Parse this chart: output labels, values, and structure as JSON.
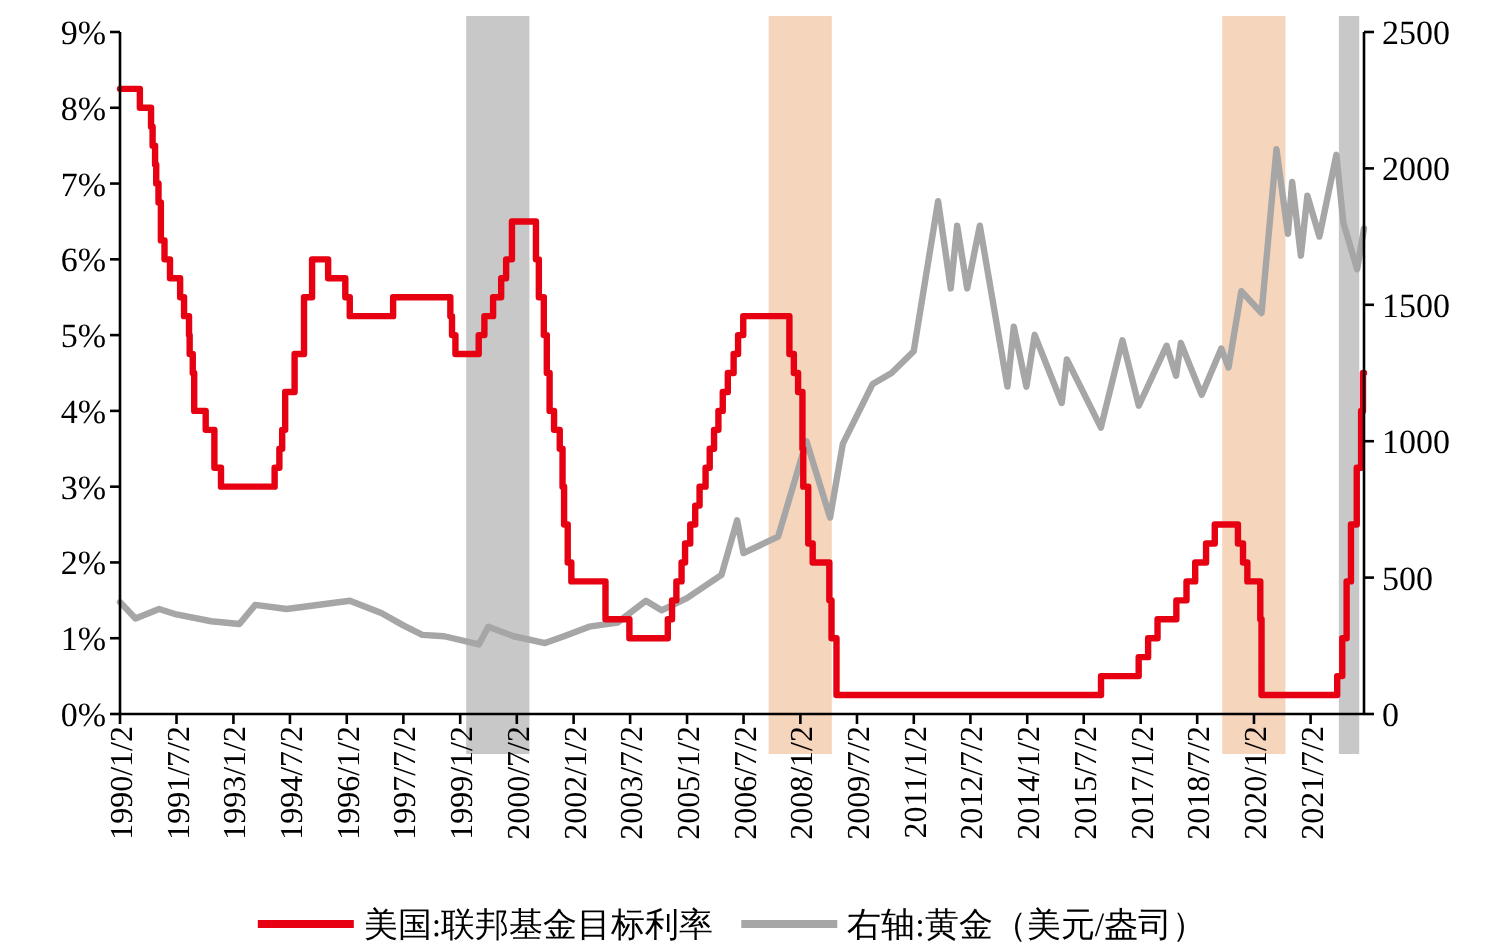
{
  "chart_data": {
    "type": "line",
    "xlim": [
      "1990-01-02",
      "2022-11-30"
    ],
    "xticks": [
      {
        "value": "1990-01-02",
        "label": "1990/1/2"
      },
      {
        "value": "1991-07-02",
        "label": "1991/7/2"
      },
      {
        "value": "1993-01-02",
        "label": "1993/1/2"
      },
      {
        "value": "1994-07-02",
        "label": "1994/7/2"
      },
      {
        "value": "1996-01-02",
        "label": "1996/1/2"
      },
      {
        "value": "1997-07-02",
        "label": "1997/7/2"
      },
      {
        "value": "1999-01-02",
        "label": "1999/1/2"
      },
      {
        "value": "2000-07-02",
        "label": "2000/7/2"
      },
      {
        "value": "2002-01-02",
        "label": "2002/1/2"
      },
      {
        "value": "2003-07-02",
        "label": "2003/7/2"
      },
      {
        "value": "2005-01-02",
        "label": "2005/1/2"
      },
      {
        "value": "2006-07-02",
        "label": "2006/7/2"
      },
      {
        "value": "2008-01-02",
        "label": "2008/1/2"
      },
      {
        "value": "2009-07-02",
        "label": "2009/7/2"
      },
      {
        "value": "2011-01-02",
        "label": "2011/1/2"
      },
      {
        "value": "2012-07-02",
        "label": "2012/7/2"
      },
      {
        "value": "2014-01-02",
        "label": "2014/1/2"
      },
      {
        "value": "2015-07-02",
        "label": "2015/7/2"
      },
      {
        "value": "2017-01-02",
        "label": "2017/1/2"
      },
      {
        "value": "2018-07-02",
        "label": "2018/7/2"
      },
      {
        "value": "2020-01-02",
        "label": "2020/1/2"
      },
      {
        "value": "2021-07-02",
        "label": "2021/7/2"
      }
    ],
    "ylim": [
      0,
      9
    ],
    "yticks": [
      {
        "value": 0,
        "label": "0%"
      },
      {
        "value": 1,
        "label": "1%"
      },
      {
        "value": 2,
        "label": "2%"
      },
      {
        "value": 3,
        "label": "3%"
      },
      {
        "value": 4,
        "label": "4%"
      },
      {
        "value": 5,
        "label": "5%"
      },
      {
        "value": 6,
        "label": "6%"
      },
      {
        "value": 7,
        "label": "7%"
      },
      {
        "value": 8,
        "label": "8%"
      },
      {
        "value": 9,
        "label": "9%"
      }
    ],
    "y2lim": [
      0,
      2500
    ],
    "y2ticks": [
      0,
      500,
      1000,
      1500,
      2000,
      2500
    ],
    "grid": false,
    "legend": "bottom",
    "marker": "none",
    "line_style": "solid",
    "bands": [
      {
        "axis": "x",
        "from": "1999-03-01",
        "to": "2000-11-01",
        "color": "#c8c8c8"
      },
      {
        "axis": "x",
        "from": "2007-03-01",
        "to": "2008-11-01",
        "color": "#f6d5bd"
      },
      {
        "axis": "x",
        "from": "2019-03-01",
        "to": "2020-11-01",
        "color": "#f6d5bd"
      },
      {
        "axis": "x",
        "from": "2022-04-01",
        "to": "2022-10-15",
        "color": "#c8c8c8"
      }
    ],
    "series": [
      {
        "name": "右轴:黄金（美元/盎司）",
        "color": "#a6a6a6",
        "axis": "y2",
        "x": [
          "1990-01-02",
          "1990-06-01",
          "1991-01-15",
          "1991-07-01",
          "1992-06-01",
          "1993-03-01",
          "1993-08-01",
          "1994-06-01",
          "1996-02-01",
          "1996-12-01",
          "1997-07-01",
          "1998-01-01",
          "1998-08-01",
          "1999-07-01",
          "1999-10-01",
          "2000-06-01",
          "2001-04-01",
          "2001-10-01",
          "2002-06-01",
          "2003-03-01",
          "2003-12-01",
          "2004-05-01",
          "2005-01-01",
          "2005-12-01",
          "2006-05-01",
          "2006-07-01",
          "2007-06-01",
          "2008-03-01",
          "2008-10-15",
          "2009-02-15",
          "2009-12-01",
          "2010-06-01",
          "2011-01-01",
          "2011-08-25",
          "2011-12-25",
          "2012-02-25",
          "2012-06-01",
          "2012-10-01",
          "2013-06-25",
          "2013-08-25",
          "2013-12-25",
          "2014-03-15",
          "2014-12-01",
          "2015-01-20",
          "2015-12-15",
          "2016-07-10",
          "2016-12-15",
          "2017-09-10",
          "2017-12-10",
          "2018-01-25",
          "2018-08-15",
          "2019-02-20",
          "2019-05-01",
          "2019-09-01",
          "2020-03-15",
          "2020-08-06",
          "2020-11-25",
          "2021-01-05",
          "2021-03-30",
          "2021-06-01",
          "2021-09-25",
          "2022-03-08",
          "2022-05-15",
          "2022-09-25",
          "2022-11-30"
        ],
        "values": [
          410,
          350,
          385,
          365,
          340,
          330,
          400,
          385,
          415,
          370,
          325,
          290,
          285,
          255,
          320,
          285,
          260,
          285,
          320,
          335,
          415,
          380,
          425,
          510,
          710,
          590,
          650,
          1000,
          720,
          990,
          1210,
          1250,
          1330,
          1880,
          1560,
          1790,
          1560,
          1790,
          1200,
          1420,
          1200,
          1390,
          1140,
          1300,
          1050,
          1370,
          1130,
          1350,
          1240,
          1360,
          1170,
          1340,
          1270,
          1550,
          1470,
          2070,
          1760,
          1950,
          1680,
          1900,
          1750,
          2050,
          1800,
          1630,
          1780
        ]
      },
      {
        "name": "美国:联邦基金目标利率",
        "color": "#e60012",
        "type": "step",
        "x": [
          "1990-01-02",
          "1990-07-13",
          "1990-10-29",
          "1990-11-13",
          "1990-12-07",
          "1990-12-18",
          "1991-01-09",
          "1991-02-01",
          "1991-03-08",
          "1991-04-30",
          "1991-08-06",
          "1991-09-13",
          "1991-10-31",
          "1991-11-06",
          "1991-12-06",
          "1991-12-20",
          "1992-04-09",
          "1992-07-02",
          "1992-09-04",
          "1994-02-04",
          "1994-03-22",
          "1994-04-18",
          "1994-05-17",
          "1994-08-16",
          "1994-11-15",
          "1995-02-01",
          "1995-07-06",
          "1995-12-19",
          "1996-01-31",
          "1997-03-25",
          "1998-09-29",
          "1998-10-15",
          "1998-11-17",
          "1999-06-30",
          "1999-08-24",
          "1999-11-16",
          "2000-02-02",
          "2000-03-21",
          "2000-05-16",
          "2001-01-03",
          "2001-01-31",
          "2001-03-20",
          "2001-04-18",
          "2001-05-15",
          "2001-06-27",
          "2001-08-21",
          "2001-09-17",
          "2001-10-02",
          "2001-11-06",
          "2001-12-11",
          "2002-11-06",
          "2003-06-25",
          "2004-06-30",
          "2004-08-10",
          "2004-09-21",
          "2004-11-10",
          "2004-12-14",
          "2005-02-02",
          "2005-03-22",
          "2005-05-03",
          "2005-06-30",
          "2005-08-09",
          "2005-09-20",
          "2005-11-01",
          "2005-12-13",
          "2006-01-31",
          "2006-03-28",
          "2006-05-10",
          "2006-06-29",
          "2007-09-18",
          "2007-10-31",
          "2007-12-11",
          "2008-01-22",
          "2008-01-30",
          "2008-03-18",
          "2008-04-30",
          "2008-10-08",
          "2008-10-29",
          "2008-12-16",
          "2015-12-16",
          "2016-12-14",
          "2017-03-15",
          "2017-06-14",
          "2017-12-13",
          "2018-03-21",
          "2018-06-13",
          "2018-09-26",
          "2018-12-19",
          "2019-07-31",
          "2019-09-18",
          "2019-10-30",
          "2020-03-03",
          "2020-03-15",
          "2022-03-16",
          "2022-05-04",
          "2022-06-15",
          "2022-07-27",
          "2022-09-21",
          "2022-11-02",
          "2022-11-20",
          "2022-11-30"
        ],
        "values": [
          8.25,
          8.0,
          7.75,
          7.5,
          7.25,
          7.0,
          6.75,
          6.25,
          6.0,
          5.75,
          5.5,
          5.25,
          5.0,
          4.75,
          4.5,
          4.0,
          3.75,
          3.25,
          3.0,
          3.25,
          3.5,
          3.75,
          4.25,
          4.75,
          5.5,
          6.0,
          5.75,
          5.5,
          5.25,
          5.5,
          5.25,
          5.0,
          4.75,
          5.0,
          5.25,
          5.5,
          5.75,
          6.0,
          6.5,
          6.0,
          5.5,
          5.0,
          4.5,
          4.0,
          3.75,
          3.5,
          3.0,
          2.5,
          2.0,
          1.75,
          1.25,
          1.0,
          1.25,
          1.5,
          1.75,
          2.0,
          2.25,
          2.5,
          2.75,
          3.0,
          3.25,
          3.5,
          3.75,
          4.0,
          4.25,
          4.5,
          4.75,
          5.0,
          5.25,
          4.75,
          4.5,
          4.25,
          3.5,
          3.0,
          2.25,
          2.0,
          1.5,
          1.0,
          0.25,
          0.5,
          0.75,
          1.0,
          1.25,
          1.5,
          1.75,
          2.0,
          2.25,
          2.5,
          2.25,
          2.0,
          1.75,
          1.25,
          0.25,
          0.5,
          1.0,
          1.75,
          2.5,
          3.25,
          4.0,
          4.5,
          4.5
        ]
      }
    ]
  }
}
